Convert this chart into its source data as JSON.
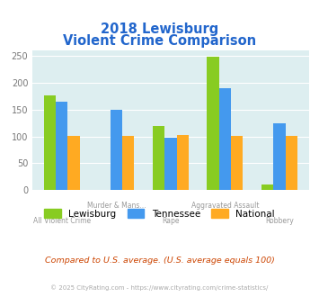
{
  "title_line1": "2018 Lewisburg",
  "title_line2": "Violent Crime Comparison",
  "categories": [
    "All Violent Crime",
    "Murder & Mans...",
    "Rape",
    "Aggravated Assault",
    "Robbery"
  ],
  "series": {
    "Lewisburg": [
      176,
      0,
      120,
      248,
      10
    ],
    "Tennessee": [
      164,
      150,
      97,
      190,
      125
    ],
    "National": [
      101,
      101,
      102,
      101,
      101
    ]
  },
  "colors": {
    "Lewisburg": "#88cc22",
    "Tennessee": "#4499ee",
    "National": "#ffaa22"
  },
  "ylim": [
    0,
    260
  ],
  "yticks": [
    0,
    50,
    100,
    150,
    200,
    250
  ],
  "background_color": "#ddeef0",
  "title_color": "#2266cc",
  "footnote1": "Compared to U.S. average. (U.S. average equals 100)",
  "footnote2": "© 2025 CityRating.com - https://www.cityrating.com/crime-statistics/",
  "footnote1_color": "#cc4400",
  "footnote2_color": "#aaaaaa"
}
